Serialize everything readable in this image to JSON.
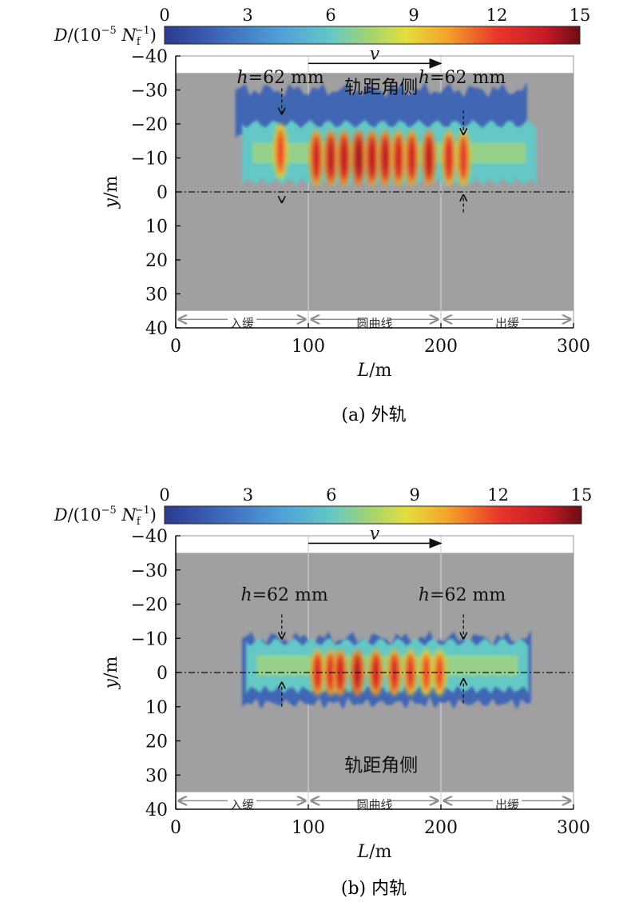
{
  "chart_data": [
    {
      "type": "heatmap",
      "caption": "(a) 外轨",
      "colorbar": {
        "label_html": [
          "D",
          "/(10",
          "−5",
          " N",
          "f",
          "−1",
          ")"
        ],
        "ticks": [
          "0",
          "3",
          "6",
          "9",
          "12",
          "15"
        ],
        "range": [
          0,
          15
        ]
      },
      "xlabel": [
        "L",
        "/m"
      ],
      "ylabel": [
        "y",
        "/m"
      ],
      "xticks": [
        "0",
        "100",
        "200",
        "300"
      ],
      "xlim": [
        0,
        300
      ],
      "yticks": [
        "−40",
        "−30",
        "−20",
        "−10",
        "0",
        "10",
        "20",
        "30",
        "40"
      ],
      "ylim": [
        -40,
        40
      ],
      "gray_region_y": [
        -35,
        35
      ],
      "velocity_label": "v",
      "velocity_arrow_x": [
        100,
        200
      ],
      "velocity_arrow_y": -37.8,
      "section_labels": [
        {
          "text": "入缓",
          "range": [
            0,
            100
          ]
        },
        {
          "text": "圆曲线",
          "range": [
            100,
            200
          ]
        },
        {
          "text": "出缓",
          "range": [
            200,
            300
          ]
        }
      ],
      "side_label": {
        "text": "轨距角侧",
        "x": 155,
        "y": -31
      },
      "h_labels": [
        {
          "text": "h=62 mm",
          "x": 79,
          "y": -32
        },
        {
          "text": "h=62 mm",
          "x": 216,
          "y": -32
        }
      ],
      "h_markers": [
        {
          "x": 80,
          "y_top": -30.5,
          "y_mid_top": -23,
          "y_mid_bottom": 3,
          "y_bottom": 2.5
        },
        {
          "x": 217,
          "y_top": -24,
          "y_mid_top": -17,
          "y_mid_bottom": 1,
          "y_bottom": 6
        }
      ],
      "centerline_y": 0,
      "band": {
        "x_start": 50,
        "x_end": 272,
        "upper_edge_y": -20,
        "lower_edge_y": -3
      },
      "scatter_band": {
        "x_start": 45,
        "x_end": 265,
        "y_top": -30,
        "y_bottom": -17
      },
      "peaks": [
        {
          "x": 79,
          "y": -12,
          "value": 12
        },
        {
          "x": 106,
          "y": -10,
          "value": 13.5
        },
        {
          "x": 117,
          "y": -10,
          "value": 14
        },
        {
          "x": 127,
          "y": -10,
          "value": 14
        },
        {
          "x": 138,
          "y": -10,
          "value": 14.5
        },
        {
          "x": 148,
          "y": -10,
          "value": 14
        },
        {
          "x": 158,
          "y": -10,
          "value": 14
        },
        {
          "x": 168,
          "y": -10,
          "value": 13.5
        },
        {
          "x": 178,
          "y": -10,
          "value": 13.5
        },
        {
          "x": 191,
          "y": -10,
          "value": 14
        },
        {
          "x": 206,
          "y": -10,
          "value": 13
        },
        {
          "x": 217,
          "y": -10,
          "value": 12.5
        }
      ]
    },
    {
      "type": "heatmap",
      "caption": "(b) 内轨",
      "colorbar": {
        "label_html": [
          "D",
          "/(10",
          "−5",
          " N",
          "f",
          "−1",
          ")"
        ],
        "ticks": [
          "0",
          "3",
          "6",
          "9",
          "12",
          "15"
        ],
        "range": [
          0,
          15
        ]
      },
      "xlabel": [
        "L",
        "/m"
      ],
      "ylabel": [
        "y",
        "/m"
      ],
      "xticks": [
        "0",
        "100",
        "200",
        "300"
      ],
      "xlim": [
        0,
        300
      ],
      "yticks": [
        "−40",
        "−30",
        "−20",
        "−10",
        "0",
        "10",
        "20",
        "30",
        "40"
      ],
      "ylim": [
        -40,
        40
      ],
      "gray_region_y": [
        -35,
        35
      ],
      "velocity_label": "v",
      "velocity_arrow_x": [
        100,
        200
      ],
      "velocity_arrow_y": -37.8,
      "section_labels": [
        {
          "text": "入缓",
          "range": [
            0,
            100
          ]
        },
        {
          "text": "圆曲线",
          "range": [
            100,
            200
          ]
        },
        {
          "text": "出缓",
          "range": [
            200,
            300
          ]
        }
      ],
      "side_label": {
        "text": "轨距角侧",
        "x": 155,
        "y": 27
      },
      "h_labels": [
        {
          "text": "h=62 mm",
          "x": 82,
          "y": -21
        },
        {
          "text": "h=62 mm",
          "x": 216,
          "y": -21
        }
      ],
      "h_markers": [
        {
          "x": 80,
          "y_top": -17,
          "y_mid_top": -10,
          "y_mid_bottom": 3,
          "y_bottom": 10
        },
        {
          "x": 217,
          "y_top": -17,
          "y_mid_top": -10,
          "y_mid_bottom": 2,
          "y_bottom": 9
        }
      ],
      "centerline_y": 0,
      "band": {
        "x_start": 53,
        "x_end": 266,
        "upper_edge_y": -9,
        "lower_edge_y": 5
      },
      "scatter_band": {
        "x_start": 50,
        "x_end": 268,
        "y_top": -10,
        "y_bottom": 9
      },
      "peaks": [
        {
          "x": 107,
          "y": 0,
          "value": 13
        },
        {
          "x": 117,
          "y": 0,
          "value": 13
        },
        {
          "x": 124,
          "y": 0,
          "value": 13.5
        },
        {
          "x": 137,
          "y": 0,
          "value": 14
        },
        {
          "x": 151,
          "y": 0,
          "value": 13.5
        },
        {
          "x": 165,
          "y": 0,
          "value": 13
        },
        {
          "x": 177,
          "y": 0,
          "value": 12.5
        },
        {
          "x": 189,
          "y": 0,
          "value": 12
        },
        {
          "x": 199,
          "y": 0,
          "value": 12
        }
      ]
    }
  ]
}
